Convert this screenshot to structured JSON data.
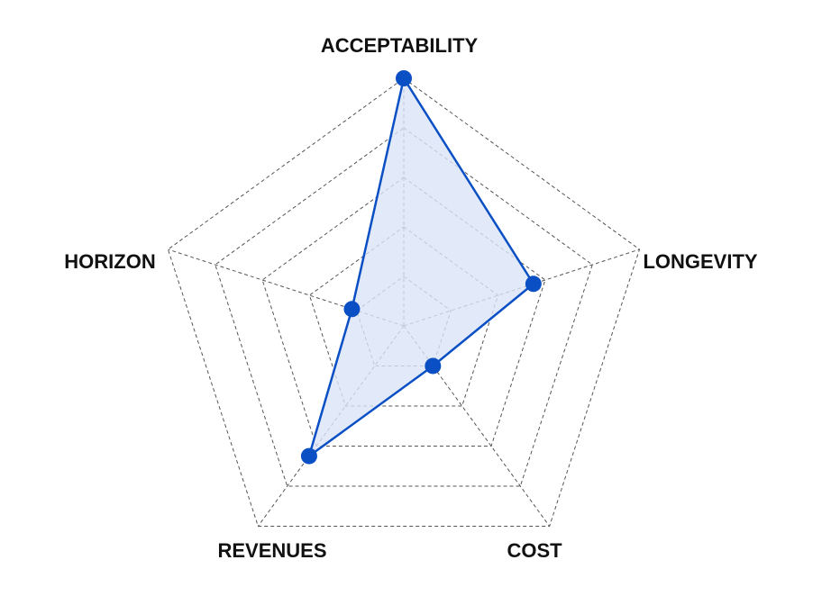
{
  "chart_data": {
    "type": "radar",
    "axes": [
      "ACCEPTABILITY",
      "LONGEVITY",
      "COST",
      "REVENUES",
      "HORIZON"
    ],
    "series": [
      {
        "values": [
          1.0,
          0.55,
          0.2,
          0.65,
          0.22
        ]
      }
    ],
    "range": [
      0,
      1
    ],
    "rings": 5,
    "grid": true,
    "colors": {
      "line": "#0a4fc4",
      "fill": "#dbe5f7",
      "grid": "#555555",
      "label": "#111111"
    }
  }
}
